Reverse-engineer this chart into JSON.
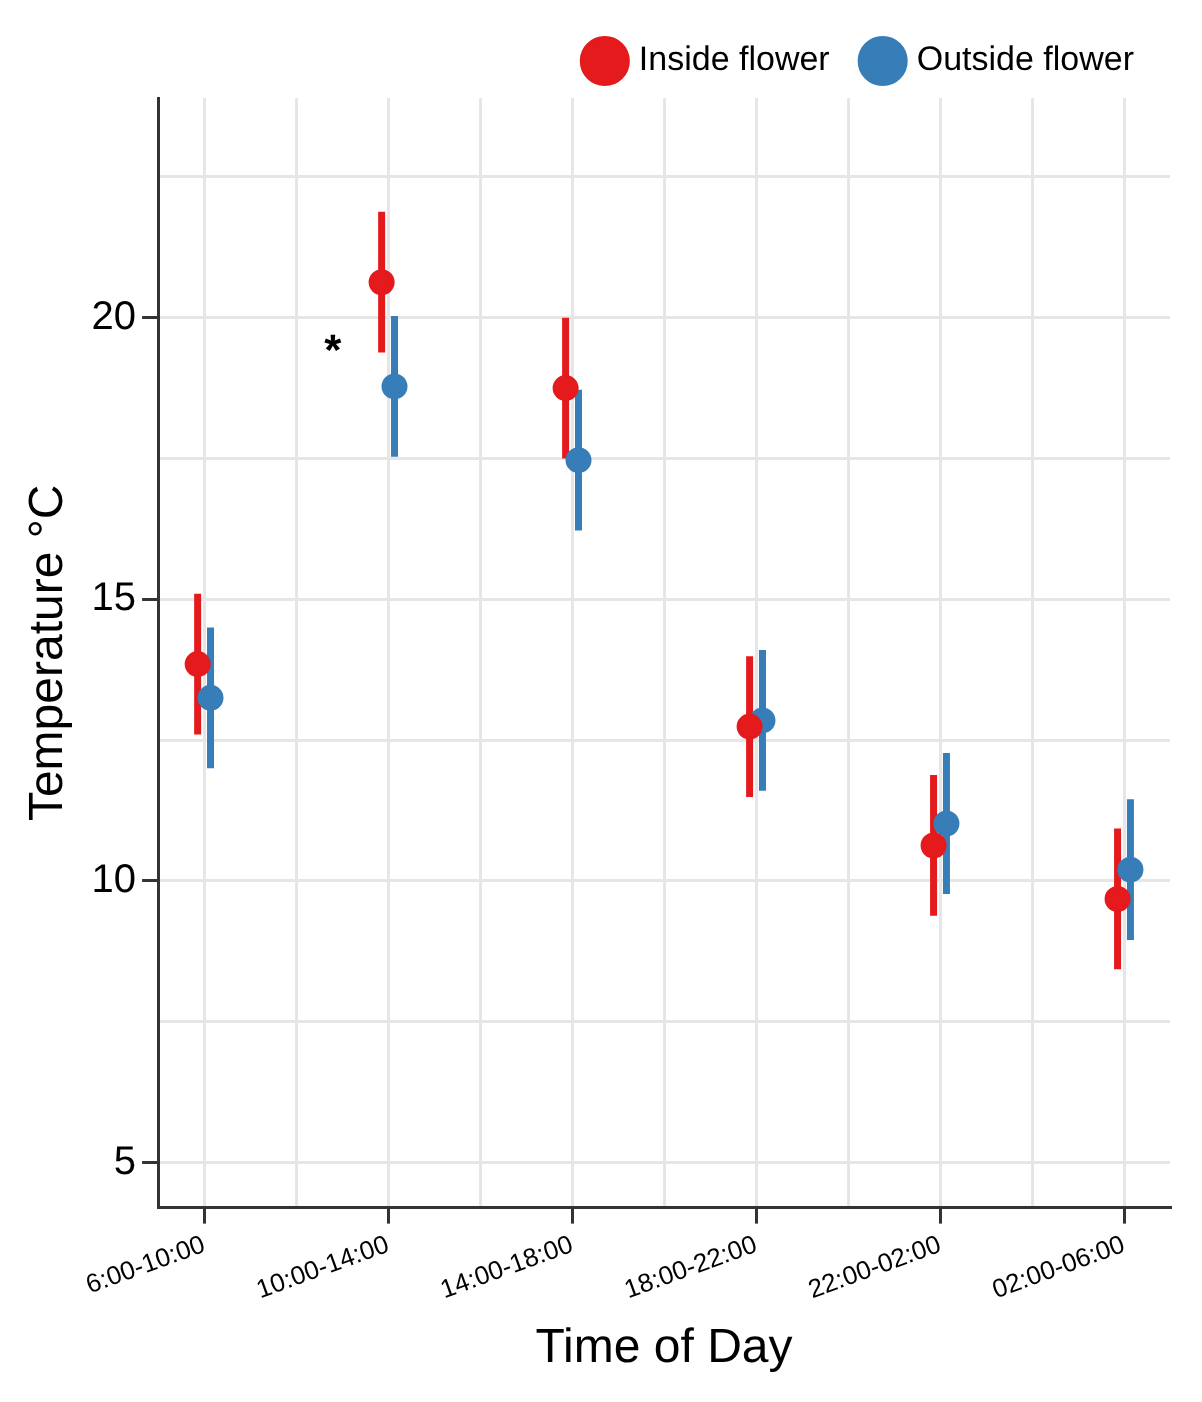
{
  "chart_data": {
    "type": "scatter",
    "xlabel": "Time of Day",
    "ylabel": "Temperature °C",
    "categories": [
      "6:00-10:00",
      "10:00-14:00",
      "14:00-18:00",
      "18:00-22:00",
      "22:00-02:00",
      "02:00-06:00"
    ],
    "series": [
      {
        "name": "Inside flower",
        "color": "#e41a1c",
        "values": [
          13.85,
          20.63,
          18.75,
          12.74,
          10.63,
          9.68
        ],
        "errors": [
          1.25,
          1.25,
          1.25,
          1.25,
          1.25,
          1.25
        ]
      },
      {
        "name": "Outside flower",
        "color": "#377eb8",
        "values": [
          13.25,
          18.78,
          17.47,
          12.85,
          11.02,
          10.2
        ],
        "errors": [
          1.25,
          1.25,
          1.25,
          1.25,
          1.25,
          1.25
        ]
      }
    ],
    "ylim": [
      4.2,
      23.9
    ],
    "yticks": [
      5,
      {
        "value": 7.5,
        "label": null
      },
      10,
      {
        "value": 12.5,
        "label": null
      },
      15,
      {
        "value": 17.5,
        "label": null
      },
      20,
      {
        "value": 22.5,
        "label": null
      }
    ],
    "annotations": [
      "*"
    ],
    "grid": true,
    "legend": "top right",
    "marker": "circle"
  }
}
